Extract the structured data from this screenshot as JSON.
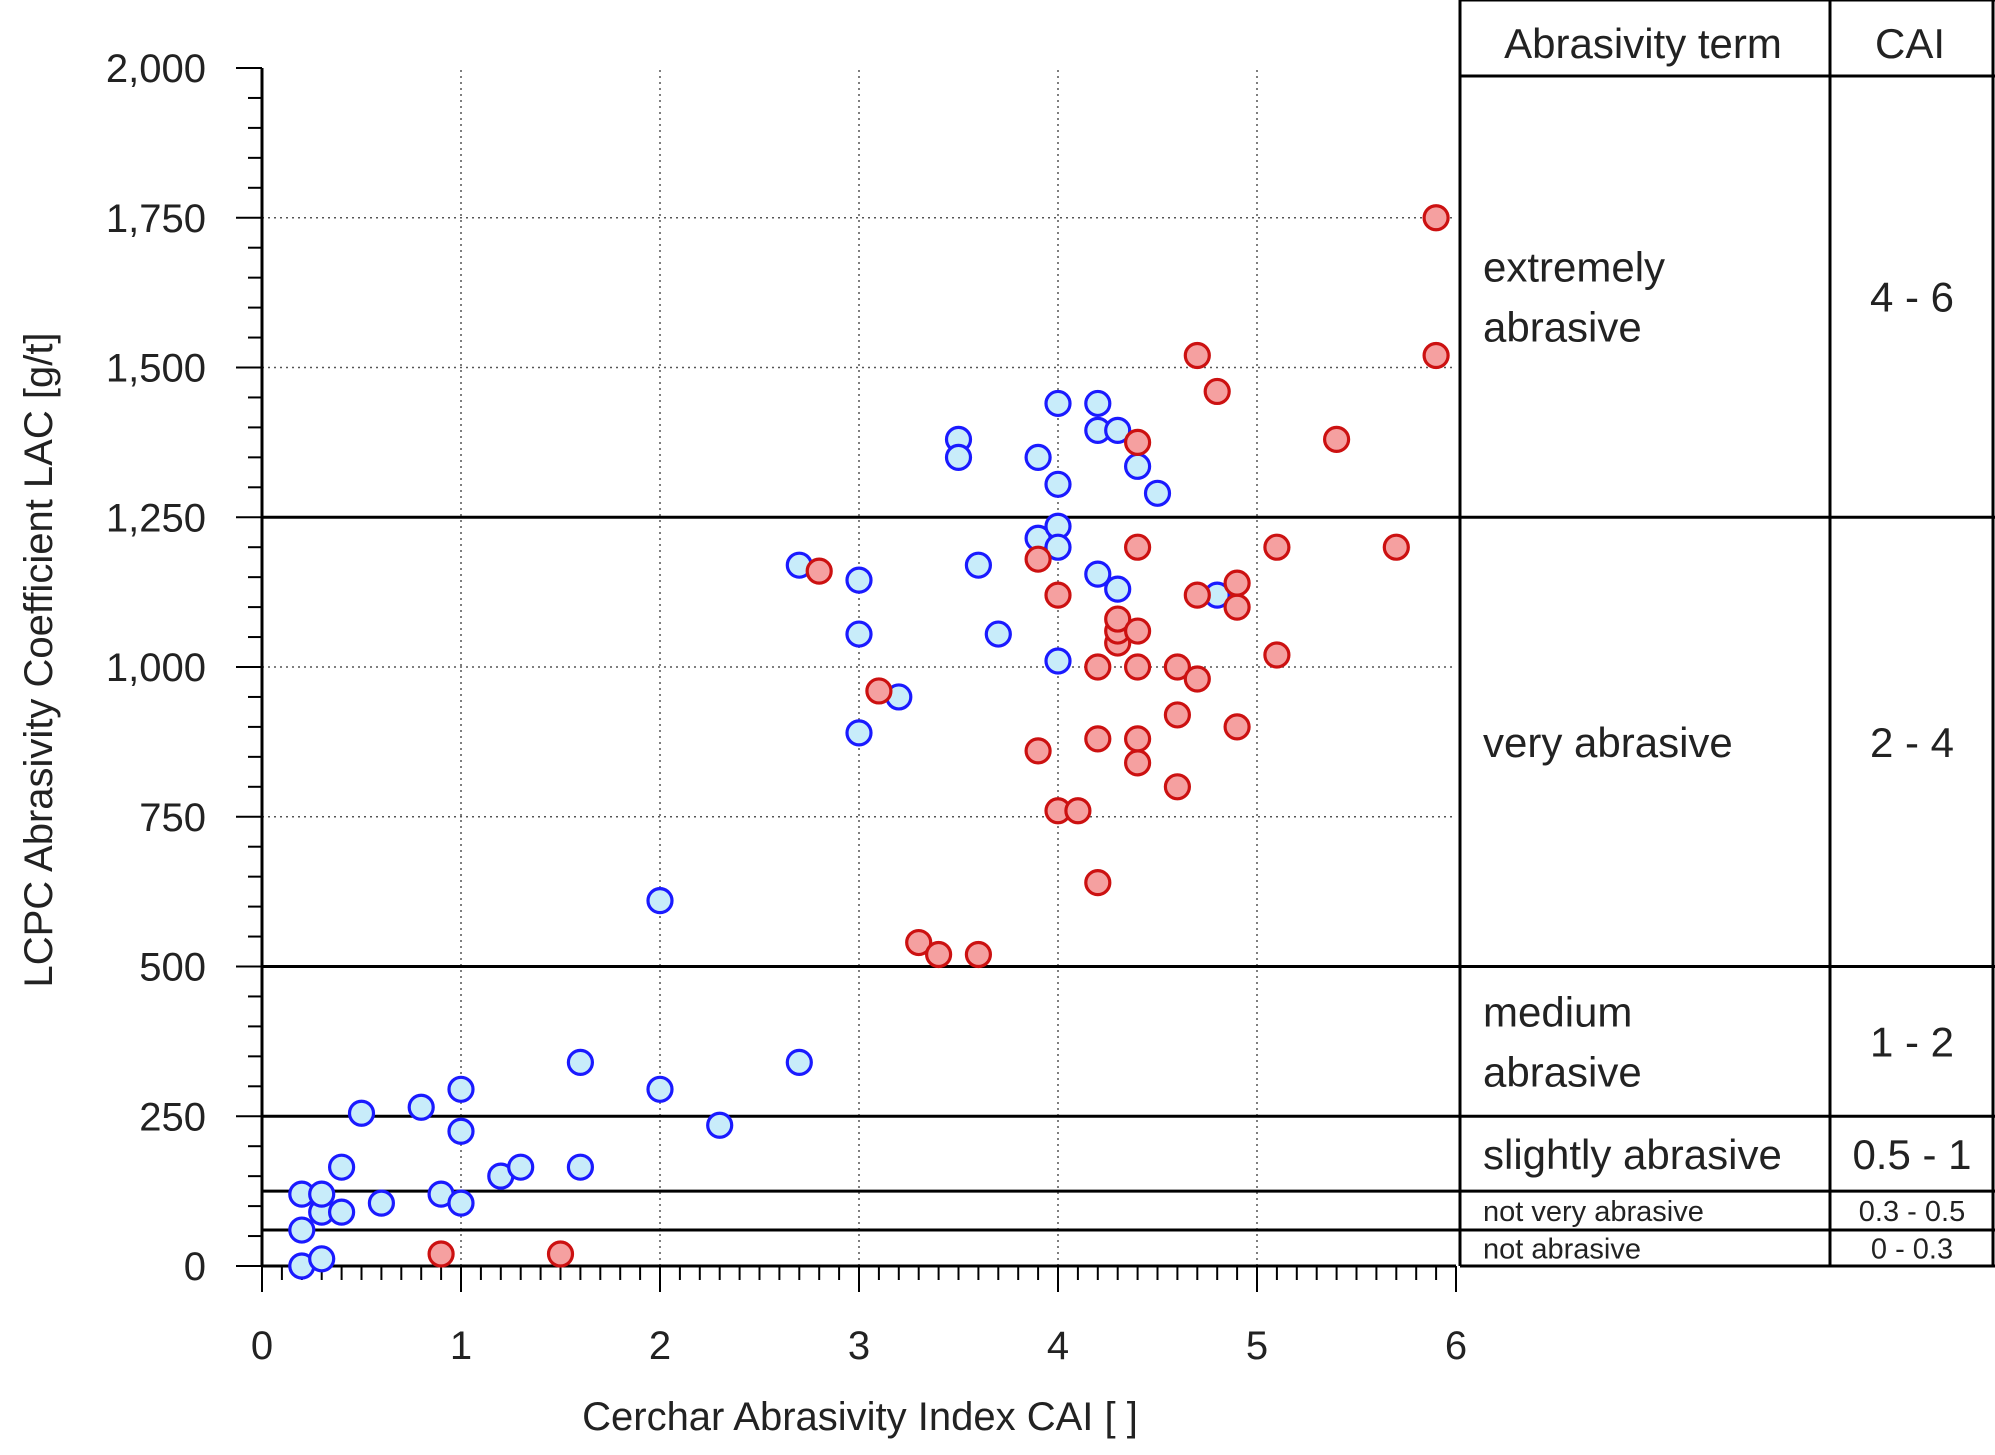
{
  "chart_data": {
    "type": "scatter",
    "xlabel": "Cerchar Abrasivity Index CAI [ ]",
    "ylabel": "LCPC Abrasivity Coefficient LAC [g/t]",
    "xlim": [
      0,
      6
    ],
    "ylim": [
      0,
      2000
    ],
    "x_ticks": [
      "0",
      "1",
      "2",
      "3",
      "4",
      "5",
      "6"
    ],
    "y_ticks": [
      "0",
      "250",
      "500",
      "750",
      "1,000",
      "1,250",
      "1,500",
      "1,750",
      "2,000"
    ],
    "grid": true,
    "series": [
      {
        "color": "#1a1aff",
        "fill": "#c8ecfa",
        "points": [
          [
            0.2,
            0
          ],
          [
            0.3,
            12
          ],
          [
            0.2,
            60
          ],
          [
            0.3,
            90
          ],
          [
            0.4,
            90
          ],
          [
            0.2,
            120
          ],
          [
            0.3,
            120
          ],
          [
            0.4,
            165
          ],
          [
            0.5,
            255
          ],
          [
            0.6,
            105
          ],
          [
            0.8,
            265
          ],
          [
            0.9,
            120
          ],
          [
            1.0,
            105
          ],
          [
            1.0,
            225
          ],
          [
            1.0,
            295
          ],
          [
            1.2,
            150
          ],
          [
            1.3,
            165
          ],
          [
            1.6,
            165
          ],
          [
            1.6,
            340
          ],
          [
            2.0,
            295
          ],
          [
            2.3,
            235
          ],
          [
            2.7,
            340
          ],
          [
            2.0,
            610
          ],
          [
            2.7,
            1170
          ],
          [
            3.0,
            1145
          ],
          [
            3.0,
            1055
          ],
          [
            3.0,
            890
          ],
          [
            3.2,
            950
          ],
          [
            3.5,
            1380
          ],
          [
            3.5,
            1350
          ],
          [
            3.6,
            1170
          ],
          [
            3.7,
            1055
          ],
          [
            3.9,
            1350
          ],
          [
            3.9,
            1215
          ],
          [
            4.0,
            1440
          ],
          [
            4.0,
            1305
          ],
          [
            4.0,
            1235
          ],
          [
            4.0,
            1200
          ],
          [
            4.0,
            1010
          ],
          [
            4.2,
            1440
          ],
          [
            4.2,
            1395
          ],
          [
            4.2,
            1155
          ],
          [
            4.3,
            1395
          ],
          [
            4.3,
            1130
          ],
          [
            4.4,
            1335
          ],
          [
            4.5,
            1290
          ],
          [
            4.8,
            1120
          ]
        ]
      },
      {
        "color": "#cc1111",
        "fill": "#f5a0a0",
        "points": [
          [
            0.9,
            20
          ],
          [
            1.5,
            20
          ],
          [
            2.8,
            1160
          ],
          [
            3.1,
            960
          ],
          [
            3.3,
            540
          ],
          [
            3.4,
            520
          ],
          [
            3.6,
            520
          ],
          [
            3.9,
            860
          ],
          [
            3.9,
            1180
          ],
          [
            4.0,
            1120
          ],
          [
            4.0,
            760
          ],
          [
            4.1,
            760
          ],
          [
            4.2,
            640
          ],
          [
            4.2,
            880
          ],
          [
            4.2,
            1000
          ],
          [
            4.3,
            1040
          ],
          [
            4.3,
            1060
          ],
          [
            4.3,
            1080
          ],
          [
            4.4,
            1000
          ],
          [
            4.4,
            1060
          ],
          [
            4.4,
            840
          ],
          [
            4.4,
            880
          ],
          [
            4.4,
            1200
          ],
          [
            4.4,
            1375
          ],
          [
            4.6,
            800
          ],
          [
            4.6,
            920
          ],
          [
            4.6,
            1000
          ],
          [
            4.7,
            980
          ],
          [
            4.7,
            1120
          ],
          [
            4.7,
            1520
          ],
          [
            4.8,
            1460
          ],
          [
            4.9,
            900
          ],
          [
            4.9,
            1100
          ],
          [
            4.9,
            1140
          ],
          [
            5.1,
            1020
          ],
          [
            5.1,
            1200
          ],
          [
            5.4,
            1380
          ],
          [
            5.7,
            1200
          ],
          [
            5.9,
            1520
          ],
          [
            5.9,
            1750
          ]
        ]
      }
    ],
    "class_lines": [
      1250,
      500,
      250,
      125,
      60
    ],
    "classification": {
      "header_term": "Abrasivity term",
      "header_cai": "CAI",
      "rows": [
        {
          "term_lines": [
            "extremely",
            "abrasive"
          ],
          "cai": "4 - 6",
          "lac_min": 1250,
          "lac_max": 2000,
          "size": "large"
        },
        {
          "term_lines": [
            "very abrasive"
          ],
          "cai": "2 - 4",
          "lac_min": 500,
          "lac_max": 1250,
          "size": "large"
        },
        {
          "term_lines": [
            "medium",
            "abrasive"
          ],
          "cai": "1 - 2",
          "lac_min": 250,
          "lac_max": 500,
          "size": "large"
        },
        {
          "term_lines": [
            "slightly abrasive"
          ],
          "cai": "0.5 - 1",
          "lac_min": 125,
          "lac_max": 250,
          "size": "large"
        },
        {
          "term_lines": [
            "not very abrasive"
          ],
          "cai": "0.3 - 0.5",
          "lac_min": 60,
          "lac_max": 125,
          "size": "small"
        },
        {
          "term_lines": [
            "not abrasive"
          ],
          "cai": "0 - 0.3",
          "lac_min": 0,
          "lac_max": 60,
          "size": "small"
        }
      ]
    }
  }
}
